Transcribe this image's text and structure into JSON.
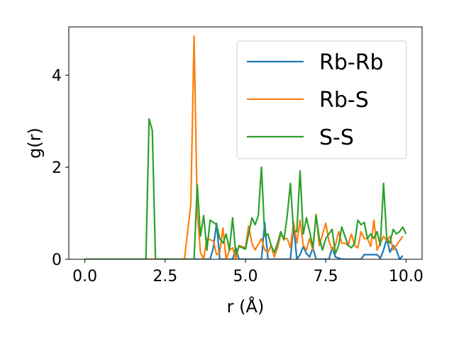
{
  "chart_data": {
    "type": "line",
    "title": "",
    "xlabel": "r (Å)",
    "ylabel": "g(r)",
    "xlim": [
      -0.5,
      10.5
    ],
    "ylim": [
      0,
      5.05
    ],
    "x_ticks": [
      "0.0",
      "2.5",
      "5.0",
      "7.5",
      "10.0"
    ],
    "x_tick_values": [
      0,
      2.5,
      5,
      7.5,
      10
    ],
    "y_ticks": [
      "0",
      "2",
      "4"
    ],
    "y_tick_values": [
      0,
      2,
      4
    ],
    "grid": false,
    "legend_position": "top-right",
    "series": [
      {
        "name": "Rb-Rb",
        "color": "#1f77b4",
        "points": [
          [
            0,
            0
          ],
          [
            3.9,
            0
          ],
          [
            4.0,
            0.25
          ],
          [
            4.1,
            0.78
          ],
          [
            4.2,
            0
          ],
          [
            4.6,
            0
          ],
          [
            4.7,
            0.25
          ],
          [
            4.8,
            0
          ],
          [
            5.5,
            0
          ],
          [
            5.6,
            0.8
          ],
          [
            5.7,
            0
          ],
          [
            6.4,
            0
          ],
          [
            6.5,
            0.75
          ],
          [
            6.6,
            0
          ],
          [
            6.7,
            0.1
          ],
          [
            6.8,
            0.28
          ],
          [
            6.9,
            0.12
          ],
          [
            7.0,
            0.05
          ],
          [
            7.1,
            0.25
          ],
          [
            7.2,
            0
          ],
          [
            7.6,
            0
          ],
          [
            7.7,
            0.25
          ],
          [
            7.8,
            0.05
          ],
          [
            8.0,
            0
          ],
          [
            8.6,
            0
          ],
          [
            8.7,
            0.1
          ],
          [
            9.1,
            0.1
          ],
          [
            9.2,
            0.02
          ],
          [
            9.3,
            0.2
          ],
          [
            9.4,
            0.45
          ],
          [
            9.5,
            0.15
          ],
          [
            9.6,
            0.3
          ],
          [
            9.7,
            0.2
          ],
          [
            9.8,
            0
          ],
          [
            9.9,
            0.08
          ]
        ]
      },
      {
        "name": "Rb-S",
        "color": "#ff7f0e",
        "points": [
          [
            0,
            0
          ],
          [
            3.1,
            0
          ],
          [
            3.3,
            1.2
          ],
          [
            3.4,
            4.85
          ],
          [
            3.5,
            1.0
          ],
          [
            3.6,
            0.15
          ],
          [
            3.7,
            0
          ],
          [
            3.8,
            0.45
          ],
          [
            4.0,
            0.4
          ],
          [
            4.1,
            0.1
          ],
          [
            4.2,
            0.15
          ],
          [
            4.3,
            0.68
          ],
          [
            4.4,
            0
          ],
          [
            4.5,
            0.2
          ],
          [
            4.6,
            0.25
          ],
          [
            4.7,
            0
          ],
          [
            4.8,
            0.3
          ],
          [
            5.0,
            0.25
          ],
          [
            5.1,
            0.72
          ],
          [
            5.2,
            0.35
          ],
          [
            5.3,
            0.2
          ],
          [
            5.5,
            0.45
          ],
          [
            5.6,
            0.2
          ],
          [
            5.7,
            0.15
          ],
          [
            5.8,
            0.3
          ],
          [
            5.9,
            0.05
          ],
          [
            6.0,
            0.25
          ],
          [
            6.1,
            0.55
          ],
          [
            6.2,
            0.45
          ],
          [
            6.3,
            0.45
          ],
          [
            6.4,
            0.25
          ],
          [
            6.5,
            0.8
          ],
          [
            6.6,
            0.35
          ],
          [
            6.7,
            0.85
          ],
          [
            6.8,
            0.3
          ],
          [
            6.9,
            0.2
          ],
          [
            7.0,
            0.45
          ],
          [
            7.1,
            0.2
          ],
          [
            7.2,
            0.98
          ],
          [
            7.3,
            0.3
          ],
          [
            7.5,
            0.78
          ],
          [
            7.6,
            0.4
          ],
          [
            7.7,
            0.2
          ],
          [
            7.8,
            0.3
          ],
          [
            7.9,
            0.6
          ],
          [
            8.0,
            0.35
          ],
          [
            8.1,
            0.35
          ],
          [
            8.2,
            0.3
          ],
          [
            8.3,
            0.55
          ],
          [
            8.4,
            0.3
          ],
          [
            8.5,
            0.25
          ],
          [
            8.6,
            0.6
          ],
          [
            8.7,
            0.45
          ],
          [
            8.8,
            0.45
          ],
          [
            8.9,
            0.28
          ],
          [
            9.0,
            0.85
          ],
          [
            9.1,
            0.2
          ],
          [
            9.2,
            0.35
          ],
          [
            9.3,
            0.5
          ],
          [
            9.4,
            0.4
          ],
          [
            9.5,
            0.5
          ],
          [
            9.6,
            0.2
          ],
          [
            9.7,
            0.3
          ],
          [
            9.8,
            0.4
          ],
          [
            9.9,
            0.5
          ]
        ]
      },
      {
        "name": "S-S",
        "color": "#2ca02c",
        "points": [
          [
            0,
            0
          ],
          [
            1.9,
            0
          ],
          [
            2.0,
            3.05
          ],
          [
            2.1,
            2.8
          ],
          [
            2.2,
            0
          ],
          [
            3.4,
            0
          ],
          [
            3.5,
            1.62
          ],
          [
            3.6,
            0.5
          ],
          [
            3.7,
            0.95
          ],
          [
            3.8,
            0.2
          ],
          [
            3.9,
            0.85
          ],
          [
            4.0,
            0.8
          ],
          [
            4.1,
            0.75
          ],
          [
            4.2,
            0.45
          ],
          [
            4.3,
            0.35
          ],
          [
            4.4,
            0.55
          ],
          [
            4.5,
            0.2
          ],
          [
            4.6,
            0.9
          ],
          [
            4.7,
            0.1
          ],
          [
            4.8,
            0.28
          ],
          [
            5.0,
            0.22
          ],
          [
            5.2,
            0.9
          ],
          [
            5.3,
            0.75
          ],
          [
            5.4,
            0.95
          ],
          [
            5.5,
            2.0
          ],
          [
            5.6,
            0.5
          ],
          [
            5.7,
            0.55
          ],
          [
            5.8,
            0.3
          ],
          [
            5.9,
            0.15
          ],
          [
            6.0,
            0.35
          ],
          [
            6.1,
            0.6
          ],
          [
            6.2,
            0.42
          ],
          [
            6.3,
            0.95
          ],
          [
            6.4,
            1.65
          ],
          [
            6.5,
            0.6
          ],
          [
            6.6,
            0.6
          ],
          [
            6.7,
            1.92
          ],
          [
            6.8,
            0.55
          ],
          [
            6.9,
            0.9
          ],
          [
            7.0,
            0.6
          ],
          [
            7.1,
            0.25
          ],
          [
            7.2,
            0.95
          ],
          [
            7.3,
            0.45
          ],
          [
            7.4,
            0.2
          ],
          [
            7.5,
            0.45
          ],
          [
            7.6,
            0.55
          ],
          [
            7.7,
            0.65
          ],
          [
            7.8,
            0.12
          ],
          [
            7.9,
            0.3
          ],
          [
            8.0,
            0.7
          ],
          [
            8.1,
            0.5
          ],
          [
            8.2,
            0.3
          ],
          [
            8.3,
            0.25
          ],
          [
            8.4,
            0.35
          ],
          [
            8.5,
            0.85
          ],
          [
            8.6,
            0.75
          ],
          [
            8.7,
            0.8
          ],
          [
            8.8,
            0.45
          ],
          [
            8.9,
            0.55
          ],
          [
            9.0,
            0.45
          ],
          [
            9.1,
            0.6
          ],
          [
            9.2,
            0.3
          ],
          [
            9.3,
            1.65
          ],
          [
            9.4,
            0.45
          ],
          [
            9.5,
            0.35
          ],
          [
            9.6,
            0.65
          ],
          [
            9.7,
            0.55
          ],
          [
            9.8,
            0.6
          ],
          [
            9.9,
            0.7
          ],
          [
            10.0,
            0.55
          ]
        ]
      }
    ]
  }
}
